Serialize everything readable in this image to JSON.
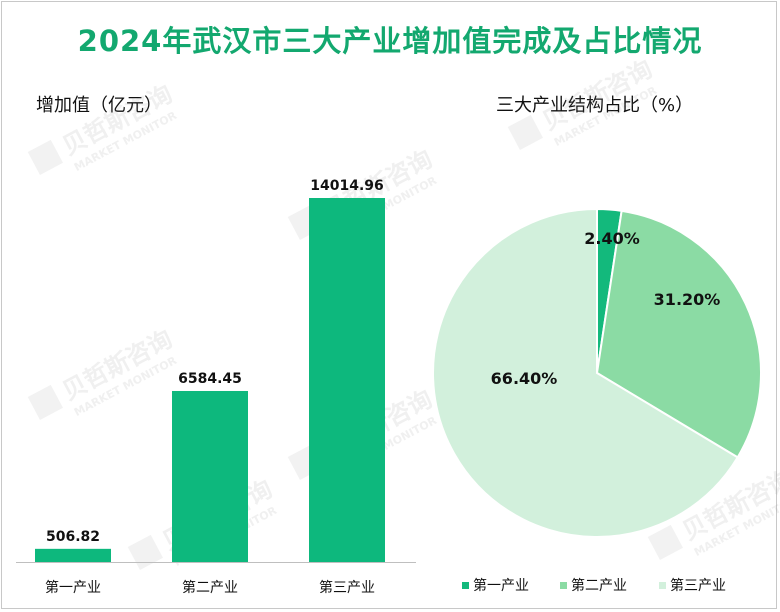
{
  "title": "2024年武汉市三大产业增加值完成及占比情况",
  "chart_data": [
    {
      "type": "bar",
      "title": "增加值（亿元）",
      "categories": [
        "第一产业",
        "第二产业",
        "第三产业"
      ],
      "values": [
        506.82,
        6584.45,
        14014.96
      ],
      "value_labels": [
        "506.82",
        "6584.45",
        "14014.96"
      ],
      "ylim": [
        0,
        14014.96
      ],
      "grid": false,
      "color": "#0db87d"
    },
    {
      "type": "pie",
      "title": "三大产业结构占比（%）",
      "categories": [
        "第一产业",
        "第二产业",
        "第三产业"
      ],
      "values": [
        2.4,
        31.2,
        66.4
      ],
      "value_labels": [
        "2.40%",
        "31.20%",
        "66.40%"
      ],
      "colors": [
        "#13b97c",
        "#8bdba4",
        "#d2f0dc"
      ],
      "legend": "bottom"
    }
  ],
  "watermark": {
    "brand": "贝哲斯咨询",
    "brand_en": "MARKET MONITOR"
  }
}
